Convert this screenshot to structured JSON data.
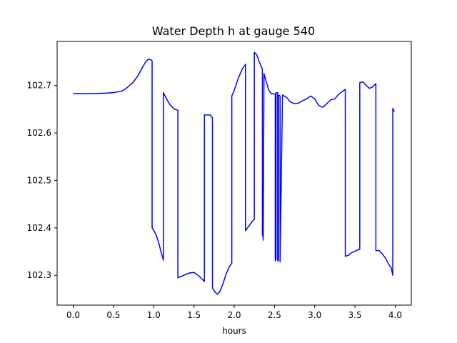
{
  "chart_data": {
    "type": "line",
    "title": "Water Depth h at gauge 540",
    "xlabel": "hours",
    "ylabel": "",
    "xlim": [
      -0.2,
      4.2
    ],
    "ylim": [
      102.237,
      102.793
    ],
    "xticks": [
      0.0,
      0.5,
      1.0,
      1.5,
      2.0,
      2.5,
      3.0,
      3.5,
      4.0
    ],
    "xtick_labels": [
      "0.0",
      "0.5",
      "1.0",
      "1.5",
      "2.0",
      "2.5",
      "3.0",
      "3.5",
      "4.0"
    ],
    "yticks": [
      102.3,
      102.4,
      102.5,
      102.6,
      102.7
    ],
    "ytick_labels": [
      "102.3",
      "102.4",
      "102.5",
      "102.6",
      "102.7"
    ],
    "grid": false,
    "series": [
      {
        "color": "#0000ff",
        "x": [
          0.0,
          0.2,
          0.4,
          0.5,
          0.6,
          0.65,
          0.7,
          0.75,
          0.8,
          0.85,
          0.9,
          0.93,
          0.96,
          0.98,
          0.98,
          1.0,
          1.03,
          1.06,
          1.09,
          1.12,
          1.12,
          1.15,
          1.2,
          1.25,
          1.3,
          1.3,
          1.35,
          1.4,
          1.45,
          1.5,
          1.55,
          1.6,
          1.63,
          1.63,
          1.7,
          1.73,
          1.73,
          1.76,
          1.79,
          1.82,
          1.86,
          1.9,
          1.94,
          1.97,
          1.97,
          2.0,
          2.05,
          2.1,
          2.14,
          2.14,
          2.17,
          2.22,
          2.25,
          2.25,
          2.28,
          2.3,
          2.33,
          2.35,
          2.35,
          2.36,
          2.36,
          2.37,
          2.4,
          2.43,
          2.46,
          2.51,
          2.51,
          2.52,
          2.52,
          2.54,
          2.54,
          2.55,
          2.55,
          2.57,
          2.57,
          2.6,
          2.65,
          2.7,
          2.75,
          2.8,
          2.85,
          2.9,
          2.95,
          3.0,
          3.05,
          3.1,
          3.15,
          3.2,
          3.25,
          3.3,
          3.38,
          3.38,
          3.42,
          3.45,
          3.49,
          3.53,
          3.56,
          3.56,
          3.6,
          3.64,
          3.68,
          3.72,
          3.76,
          3.76,
          3.8,
          3.84,
          3.88,
          3.92,
          3.95,
          3.97,
          3.97,
          3.99
        ],
        "y": [
          102.683,
          102.683,
          102.684,
          102.685,
          102.688,
          102.693,
          102.7,
          102.708,
          102.72,
          102.735,
          102.75,
          102.755,
          102.755,
          102.752,
          102.4,
          102.395,
          102.385,
          102.37,
          102.35,
          102.332,
          102.685,
          102.675,
          102.66,
          102.651,
          102.648,
          102.295,
          102.298,
          102.302,
          102.305,
          102.306,
          102.3,
          102.292,
          102.287,
          102.638,
          102.638,
          102.632,
          102.273,
          102.265,
          102.26,
          102.265,
          102.282,
          102.303,
          102.318,
          102.325,
          102.678,
          102.69,
          102.715,
          102.735,
          102.745,
          102.394,
          102.401,
          102.413,
          102.418,
          102.77,
          102.765,
          102.755,
          102.742,
          102.735,
          102.385,
          102.38,
          102.374,
          102.725,
          102.707,
          102.69,
          102.683,
          102.682,
          102.33,
          102.335,
          102.685,
          102.685,
          102.33,
          102.332,
          102.68,
          102.678,
          102.328,
          102.68,
          102.675,
          102.665,
          102.662,
          102.663,
          102.668,
          102.672,
          102.678,
          102.672,
          102.658,
          102.654,
          102.662,
          102.67,
          102.672,
          102.682,
          102.692,
          102.34,
          102.342,
          102.347,
          102.35,
          102.353,
          102.355,
          102.706,
          102.708,
          102.7,
          102.694,
          102.697,
          102.704,
          102.352,
          102.352,
          102.345,
          102.336,
          102.323,
          102.316,
          102.3,
          102.652,
          102.645
        ]
      }
    ]
  }
}
